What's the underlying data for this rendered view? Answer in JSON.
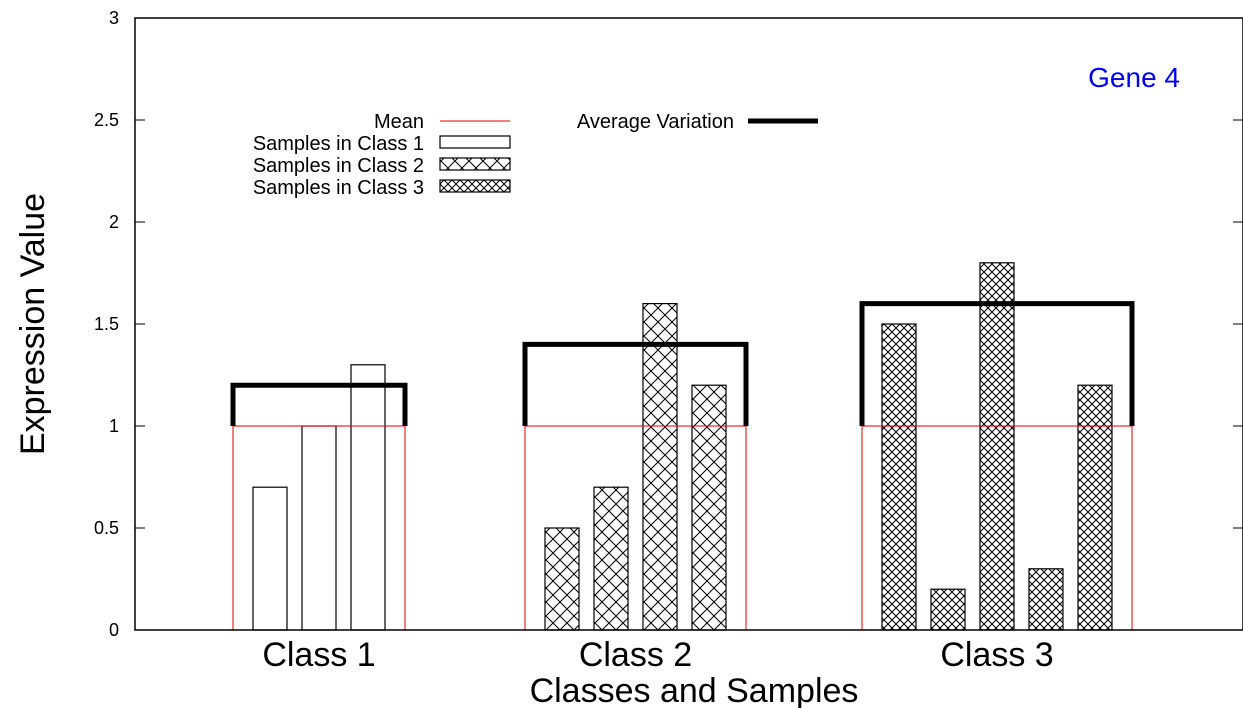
{
  "chart_data": {
    "type": "bar",
    "title": "Gene 4",
    "title_color": "#0000ee",
    "xlabel": "Classes and Samples",
    "ylabel": "Expression Value",
    "ylim": [
      0,
      3
    ],
    "yticks": [
      "0",
      "0.5",
      "1",
      "1.5",
      "2",
      "2.5",
      "3"
    ],
    "grid": false,
    "legend_position": "top-left",
    "legend": {
      "mean": "Mean",
      "average_variation": "Average Variation",
      "class1": "Samples in Class 1",
      "class2": "Samples in Class 2",
      "class3": "Samples in Class 3"
    },
    "colors": {
      "mean": "#e00000",
      "variation": "#000000",
      "bar_edge": "#000000",
      "title": "#0000ee"
    },
    "classes": [
      {
        "label": "Class 1",
        "pattern": "none",
        "mean": 1.0,
        "average_variation": 0.2,
        "values": [
          0.7,
          1.0,
          1.3
        ]
      },
      {
        "label": "Class 2",
        "pattern": "crosshatch",
        "mean": 1.0,
        "average_variation": 0.4,
        "values": [
          0.5,
          0.7,
          1.6,
          1.2
        ]
      },
      {
        "label": "Class 3",
        "pattern": "dense-crosshatch",
        "mean": 1.0,
        "average_variation": 0.6,
        "values": [
          1.5,
          0.2,
          1.8,
          0.3,
          1.2
        ]
      }
    ]
  }
}
